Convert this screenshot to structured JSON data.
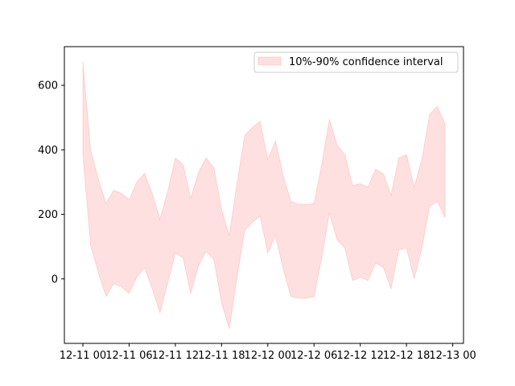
{
  "chart_data": {
    "type": "area",
    "x": [
      "12-11 00:00",
      "12-11 01:00",
      "12-11 02:00",
      "12-11 03:00",
      "12-11 04:00",
      "12-11 05:00",
      "12-11 06:00",
      "12-11 07:00",
      "12-11 08:00",
      "12-11 09:00",
      "12-11 10:00",
      "12-11 11:00",
      "12-11 12:00",
      "12-11 13:00",
      "12-11 14:00",
      "12-11 15:00",
      "12-11 16:00",
      "12-11 17:00",
      "12-11 18:00",
      "12-11 19:00",
      "12-11 20:00",
      "12-11 21:00",
      "12-11 22:00",
      "12-11 23:00",
      "12-12 00:00",
      "12-12 01:00",
      "12-12 02:00",
      "12-12 03:00",
      "12-12 04:00",
      "12-12 05:00",
      "12-12 06:00",
      "12-12 07:00",
      "12-12 08:00",
      "12-12 09:00",
      "12-12 10:00",
      "12-12 11:00",
      "12-12 12:00",
      "12-12 13:00",
      "12-12 14:00",
      "12-12 15:00",
      "12-12 16:00",
      "12-12 17:00",
      "12-12 18:00",
      "12-12 19:00",
      "12-12 20:00",
      "12-12 21:00",
      "12-12 22:00",
      "12-12 23:00"
    ],
    "series": [
      {
        "name": "10%-90% confidence interval",
        "color": "#ff0000",
        "opacity": 0.12,
        "upper": [
          675,
          400,
          310,
          235,
          275,
          265,
          245,
          300,
          328,
          265,
          185,
          270,
          375,
          355,
          250,
          330,
          375,
          345,
          215,
          135,
          295,
          445,
          470,
          488,
          370,
          428,
          320,
          240,
          232,
          231,
          234,
          355,
          495,
          415,
          385,
          290,
          295,
          285,
          340,
          325,
          260,
          375,
          385,
          285,
          370,
          510,
          535,
          480
        ],
        "lower": [
          385,
          105,
          20,
          -55,
          -15,
          -25,
          -45,
          5,
          35,
          -30,
          -105,
          -15,
          80,
          65,
          -45,
          40,
          85,
          60,
          -75,
          -155,
          5,
          150,
          175,
          195,
          80,
          135,
          30,
          -55,
          -60,
          -60,
          -55,
          65,
          205,
          120,
          95,
          -5,
          5,
          -5,
          50,
          35,
          -30,
          90,
          95,
          0,
          95,
          225,
          240,
          190
        ]
      }
    ],
    "xticks": [
      "12-11 00",
      "12-11 06",
      "12-11 12",
      "12-11 18",
      "12-12 00",
      "12-12 06",
      "12-12 12",
      "12-12 18",
      "12-13 00"
    ],
    "yticks": [
      "0",
      "200",
      "400",
      "600"
    ],
    "ylim": [
      -200,
      720
    ],
    "xlim_hours": [
      -2.4,
      49.4
    ],
    "title": "",
    "xlabel": "",
    "ylabel": "",
    "grid": false,
    "legend_position": "top-right"
  }
}
